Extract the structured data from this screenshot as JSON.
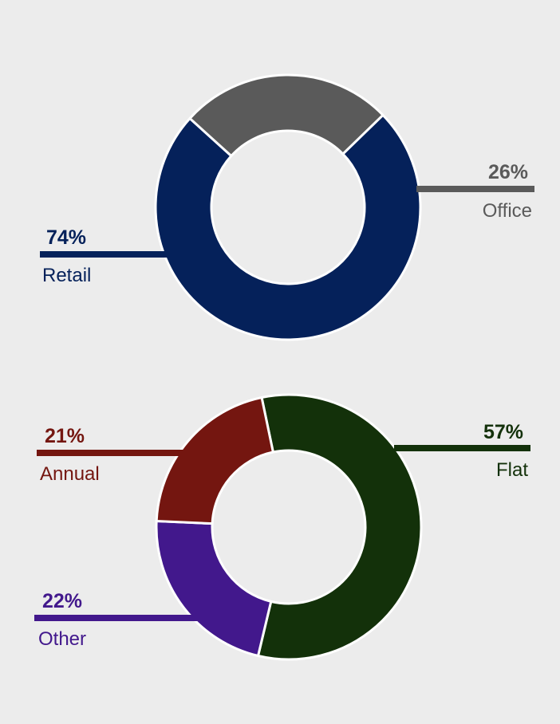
{
  "chart_data": [
    {
      "type": "donut",
      "series": [
        {
          "category": "Retail",
          "value": 74,
          "label": "74%",
          "color": "#05215a"
        },
        {
          "category": "Office",
          "value": 26,
          "label": "26%",
          "color": "#5a5a5a"
        }
      ]
    },
    {
      "type": "donut",
      "series": [
        {
          "category": "Flat",
          "value": 57,
          "label": "57%",
          "color": "#13310a"
        },
        {
          "category": "Other",
          "value": 22,
          "label": "22%",
          "color": "#42188c"
        },
        {
          "category": "Annual",
          "value": 21,
          "label": "21%",
          "color": "#741610"
        }
      ]
    }
  ],
  "background": "#ececec"
}
